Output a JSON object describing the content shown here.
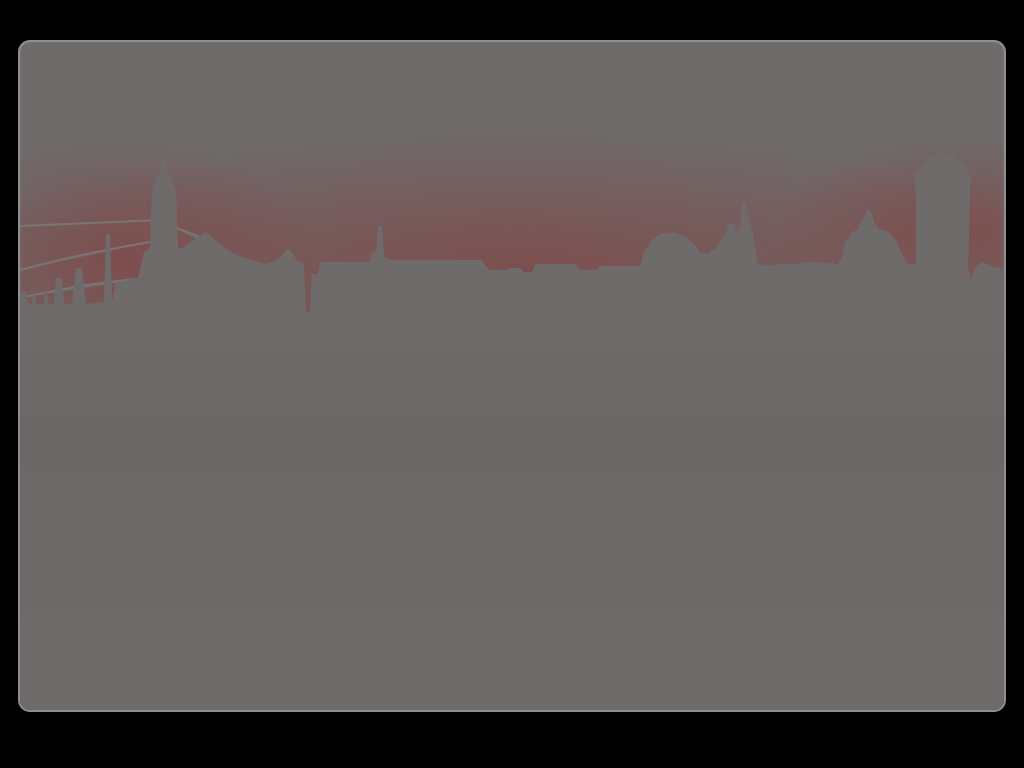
{
  "screen": {
    "background_color": "#000000",
    "panel_border_color": "#8e8e8e",
    "panel_top_color": "#6f6b6b",
    "panel_accent_color": "#8c3838",
    "panel_bottom_color": "#3c2020",
    "silhouette_color": "#6f6b6b",
    "illustration": "city-skyline-silhouette"
  }
}
